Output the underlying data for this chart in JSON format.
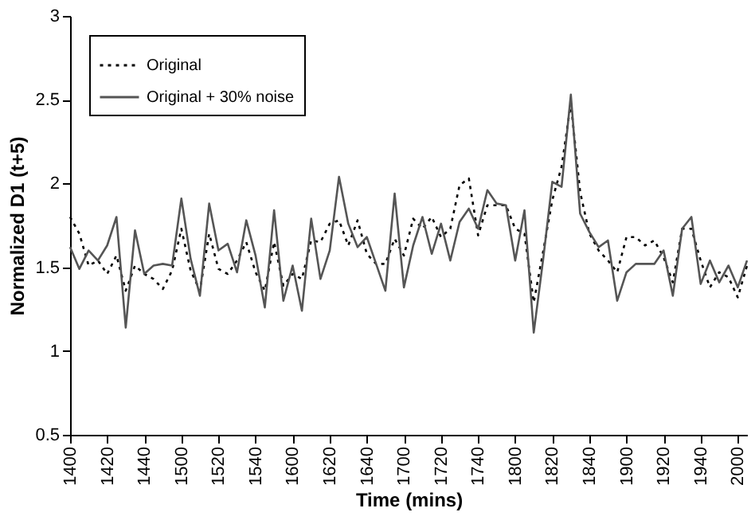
{
  "chart_data": {
    "type": "line",
    "xlabel": "Time (mins)",
    "ylabel": "Normalized D1 (t+5)",
    "categories": [
      "1400",
      null,
      null,
      null,
      "1420",
      null,
      null,
      null,
      "1440",
      null,
      null,
      null,
      "1500",
      null,
      null,
      null,
      "1520",
      null,
      null,
      null,
      "1540",
      null,
      null,
      null,
      "1600",
      null,
      null,
      null,
      "1620",
      null,
      null,
      null,
      "1640",
      null,
      null,
      null,
      "1700",
      null,
      null,
      null,
      "1720",
      null,
      null,
      null,
      "1740",
      null,
      null,
      null,
      "1800",
      null,
      null,
      null,
      "1820",
      null,
      null,
      null,
      "1840",
      null,
      null,
      null,
      "1900",
      null,
      null,
      null,
      "1920",
      null,
      null,
      null,
      "1940",
      null,
      null,
      null,
      "2000",
      null
    ],
    "series": [
      {
        "name": "Original",
        "color": "#000000",
        "line_style": "dotted",
        "values": [
          1.8,
          1.7,
          1.51,
          1.54,
          1.46,
          1.57,
          1.36,
          1.51,
          1.46,
          1.43,
          1.37,
          1.48,
          1.73,
          1.48,
          1.36,
          1.7,
          1.49,
          1.46,
          1.54,
          1.65,
          1.47,
          1.36,
          1.65,
          1.39,
          1.46,
          1.43,
          1.66,
          1.65,
          1.76,
          1.78,
          1.63,
          1.78,
          1.58,
          1.52,
          1.52,
          1.67,
          1.57,
          1.79,
          1.73,
          1.8,
          1.68,
          1.73,
          1.99,
          2.03,
          1.69,
          1.87,
          1.87,
          1.87,
          1.73,
          1.7,
          1.29,
          1.59,
          1.9,
          2.1,
          2.48,
          1.95,
          1.7,
          1.6,
          1.54,
          1.47,
          1.68,
          1.68,
          1.63,
          1.66,
          1.56,
          1.41,
          1.73,
          1.73,
          1.54,
          1.38,
          1.47,
          1.44,
          1.32,
          1.51
        ]
      },
      {
        "name": "Original + 30% noise",
        "color": "#555555",
        "line_style": "solid",
        "values": [
          1.62,
          1.49,
          1.6,
          1.54,
          1.63,
          1.8,
          1.14,
          1.72,
          1.46,
          1.51,
          1.52,
          1.51,
          1.91,
          1.55,
          1.33,
          1.88,
          1.6,
          1.64,
          1.47,
          1.78,
          1.57,
          1.26,
          1.84,
          1.3,
          1.51,
          1.24,
          1.79,
          1.43,
          1.6,
          2.04,
          1.76,
          1.62,
          1.68,
          1.52,
          1.36,
          1.94,
          1.38,
          1.63,
          1.8,
          1.58,
          1.76,
          1.54,
          1.77,
          1.85,
          1.73,
          1.96,
          1.88,
          1.87,
          1.54,
          1.84,
          1.11,
          1.54,
          2.01,
          1.98,
          2.53,
          1.82,
          1.71,
          1.62,
          1.66,
          1.3,
          1.47,
          1.52,
          1.52,
          1.52,
          1.6,
          1.33,
          1.73,
          1.8,
          1.4,
          1.54,
          1.41,
          1.51,
          1.38,
          1.54
        ]
      }
    ],
    "ylim": [
      0.5,
      3
    ],
    "yticks": [
      0.5,
      1,
      1.5,
      2,
      2.5,
      3
    ],
    "grid": false,
    "legend": "top left"
  }
}
